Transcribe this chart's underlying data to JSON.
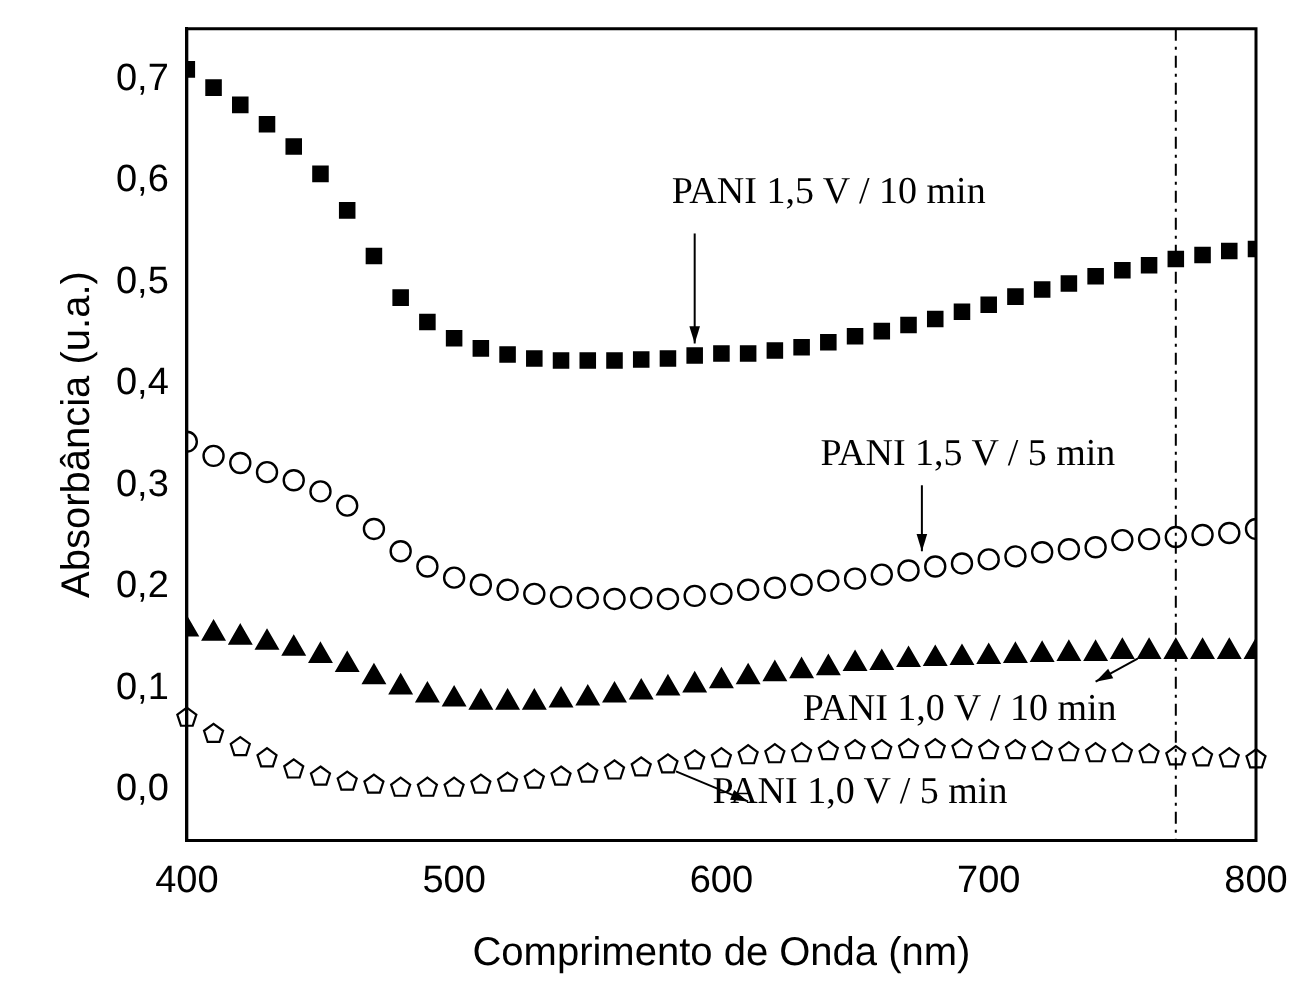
{
  "chart_data": {
    "type": "scatter",
    "xlabel": "Comprimento de Onda (nm)",
    "ylabel": "Absorbância (u.a.)",
    "x": [
      400,
      410,
      420,
      430,
      440,
      450,
      460,
      470,
      480,
      490,
      500,
      510,
      520,
      530,
      540,
      550,
      560,
      570,
      580,
      590,
      600,
      610,
      620,
      630,
      640,
      650,
      660,
      670,
      680,
      690,
      700,
      710,
      720,
      730,
      740,
      750,
      760,
      770,
      780,
      790,
      800
    ],
    "series": [
      {
        "color": "#000000",
        "marker": "square",
        "values": [
          0.71,
          0.692,
          0.675,
          0.656,
          0.634,
          0.607,
          0.571,
          0.526,
          0.485,
          0.461,
          0.445,
          0.435,
          0.429,
          0.425,
          0.423,
          0.423,
          0.423,
          0.424,
          0.425,
          0.428,
          0.43,
          0.43,
          0.433,
          0.436,
          0.441,
          0.447,
          0.452,
          0.458,
          0.464,
          0.471,
          0.478,
          0.486,
          0.493,
          0.499,
          0.506,
          0.512,
          0.517,
          0.523,
          0.527,
          0.531,
          0.533
        ]
      },
      {
        "color": "#000000",
        "marker": "circle",
        "values": [
          0.343,
          0.329,
          0.322,
          0.313,
          0.305,
          0.294,
          0.28,
          0.257,
          0.235,
          0.22,
          0.209,
          0.202,
          0.197,
          0.193,
          0.19,
          0.189,
          0.188,
          0.189,
          0.188,
          0.191,
          0.193,
          0.197,
          0.199,
          0.202,
          0.206,
          0.208,
          0.212,
          0.216,
          0.22,
          0.223,
          0.227,
          0.23,
          0.234,
          0.237,
          0.239,
          0.246,
          0.247,
          0.249,
          0.251,
          0.253,
          0.257
        ]
      },
      {
        "color": "#000000",
        "marker": "triangle",
        "values": [
          0.158,
          0.154,
          0.15,
          0.145,
          0.139,
          0.132,
          0.123,
          0.111,
          0.101,
          0.093,
          0.089,
          0.086,
          0.086,
          0.086,
          0.088,
          0.09,
          0.093,
          0.096,
          0.1,
          0.103,
          0.107,
          0.111,
          0.114,
          0.117,
          0.12,
          0.124,
          0.125,
          0.128,
          0.129,
          0.13,
          0.131,
          0.132,
          0.133,
          0.134,
          0.134,
          0.136,
          0.136,
          0.136,
          0.136,
          0.136,
          0.136
        ]
      },
      {
        "color": "#000000",
        "values": [
          0.071,
          0.055,
          0.042,
          0.031,
          0.02,
          0.013,
          0.008,
          0.005,
          0.002,
          0.002,
          0.002,
          0.005,
          0.007,
          0.01,
          0.013,
          0.016,
          0.019,
          0.022,
          0.025,
          0.029,
          0.031,
          0.034,
          0.035,
          0.036,
          0.038,
          0.039,
          0.039,
          0.04,
          0.04,
          0.04,
          0.039,
          0.039,
          0.038,
          0.037,
          0.036,
          0.036,
          0.035,
          0.033,
          0.032,
          0.031,
          0.03
        ]
      }
    ],
    "xlim": [
      400,
      800
    ],
    "xticks": [
      400,
      500,
      600,
      700,
      800
    ],
    "ylim": [
      -0.05,
      0.75
    ],
    "yticks": [
      {
        "value": 0,
        "label": "0,0"
      },
      {
        "value": 0.1,
        "label": "0,1"
      },
      {
        "value": 0.2,
        "label": "0,2"
      },
      {
        "value": 0.3,
        "label": "0,3"
      },
      {
        "value": 0.4,
        "label": "0,4"
      },
      {
        "value": 0.5,
        "label": "0,5"
      },
      {
        "value": 0.6,
        "label": "0,6"
      },
      {
        "value": 0.7,
        "label": "0,7"
      }
    ],
    "ref_lines": [
      {
        "axis": "x",
        "value": 770,
        "color": "#000000",
        "line_style": "dashdot"
      }
    ],
    "annotations": [
      {
        "text": "PANI 1,5 V / 10 min",
        "x": 590,
        "y": 0.428
      },
      {
        "text": "PANI 1,5 V / 5 min",
        "x": 675,
        "y": 0.235
      },
      {
        "text": "PANI 1,0 V / 10 min",
        "x": 740,
        "y": 0.134
      },
      {
        "text": "PANI 1,0 V / 5 min",
        "x": 583,
        "y": 0.018
      }
    ],
    "grid": false,
    "legend": false
  }
}
